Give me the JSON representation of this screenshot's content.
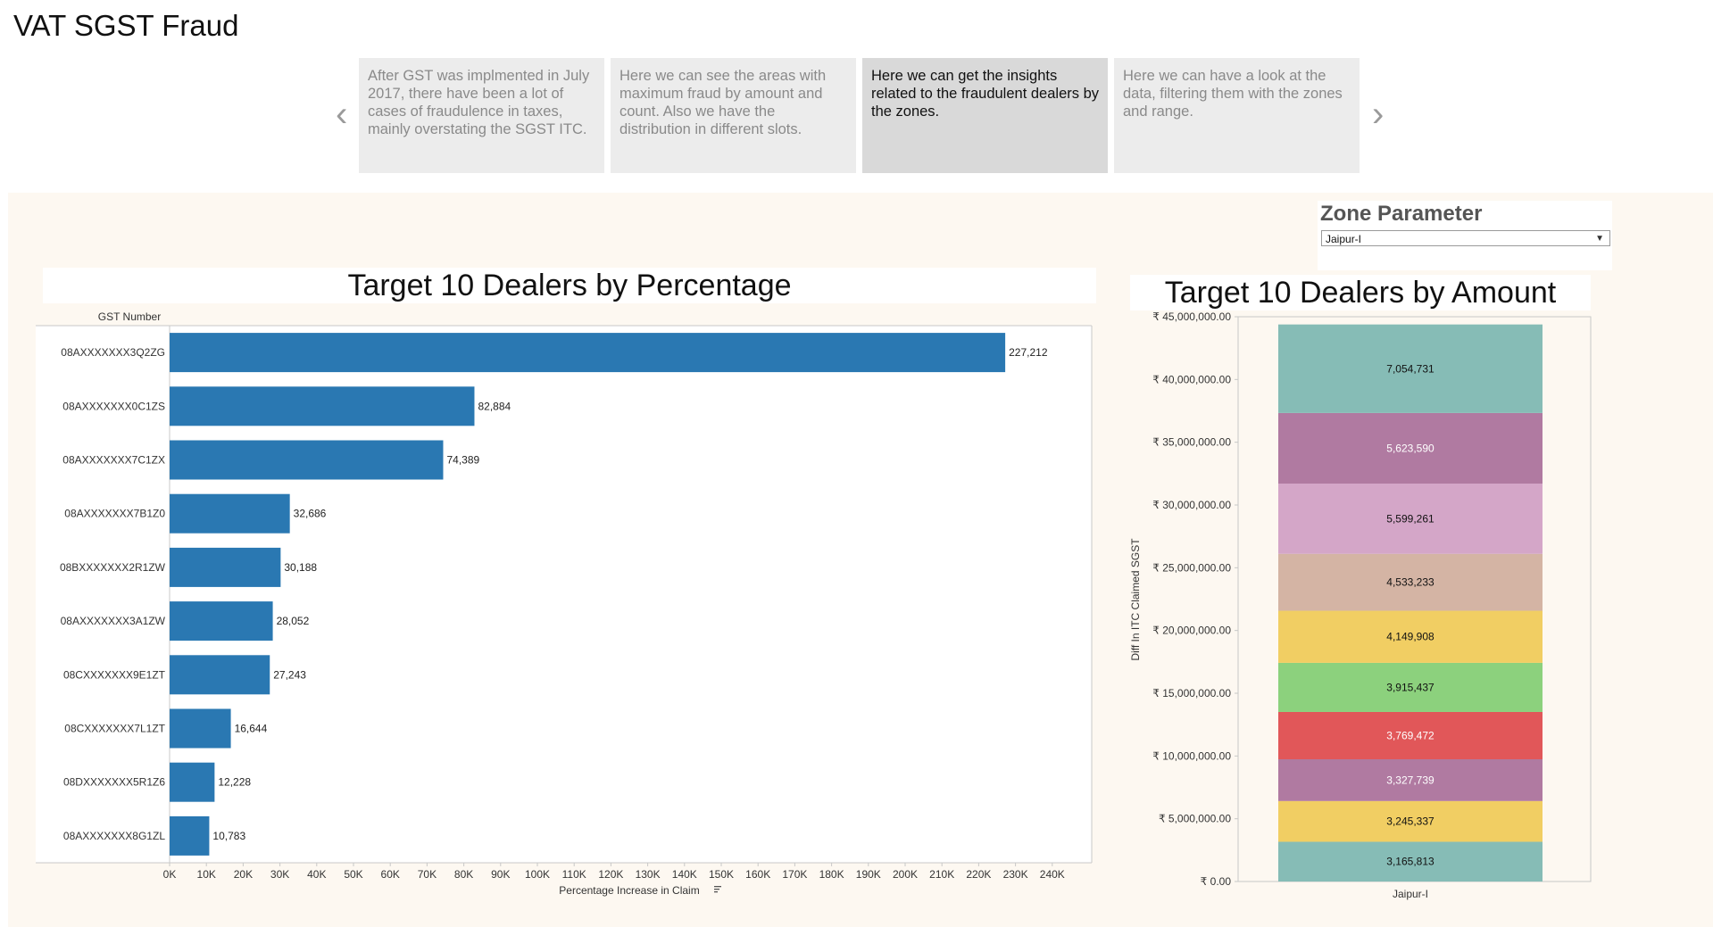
{
  "page_title": "VAT SGST Fraud",
  "story": {
    "prev_icon": "chevron-left-icon",
    "next_icon": "chevron-right-icon",
    "points": [
      {
        "text": "After GST was implmented in July 2017, there have been a lot of cases of fraudulence in taxes, mainly overstating the SGST ITC."
      },
      {
        "text": "Here we can see the areas with maximum fraud by amount and count. Also we have the distribution in different slots."
      },
      {
        "text": "Here we can get the insights related to the fraudulent dealers by the zones."
      },
      {
        "text": "Here we can have a look at the data, filtering them with the zones and range."
      }
    ],
    "active_index": 2
  },
  "zone_parameter": {
    "label": "Zone Parameter",
    "selected": "Jaipur-I"
  },
  "colors": {
    "bar_blue": "#2a78b2",
    "dashboard_bg": "#fdf8f1"
  },
  "chart_data": [
    {
      "type": "bar",
      "orientation": "horizontal",
      "title": "Target 10 Dealers by Percentage",
      "ylabel": "GST Number",
      "xlabel": "Percentage Increase in Claim",
      "categories": [
        "08AXXXXXXX3Q2ZG",
        "08AXXXXXXX0C1ZS",
        "08AXXXXXXX7C1ZX",
        "08AXXXXXXX7B1Z0",
        "08BXXXXXXX2R1ZW",
        "08AXXXXXXX3A1ZW",
        "08CXXXXXXX9E1ZT",
        "08CXXXXXXX7L1ZT",
        "08DXXXXXXX5R1Z6",
        "08AXXXXXXX8G1ZL"
      ],
      "values": [
        227212,
        82884,
        74389,
        32686,
        30188,
        28052,
        27243,
        16644,
        12228,
        10783
      ],
      "value_labels": [
        "227,212",
        "82,884",
        "74,389",
        "32,686",
        "30,188",
        "28,052",
        "27,243",
        "16,644",
        "12,228",
        "10,783"
      ],
      "xlim": [
        0,
        250000
      ],
      "xticks": [
        0,
        10000,
        20000,
        30000,
        40000,
        50000,
        60000,
        70000,
        80000,
        90000,
        100000,
        110000,
        120000,
        130000,
        140000,
        150000,
        160000,
        170000,
        180000,
        190000,
        200000,
        210000,
        220000,
        230000,
        240000
      ],
      "xtick_labels": [
        "0K",
        "10K",
        "20K",
        "30K",
        "40K",
        "50K",
        "60K",
        "70K",
        "80K",
        "90K",
        "100K",
        "110K",
        "120K",
        "130K",
        "140K",
        "150K",
        "160K",
        "170K",
        "180K",
        "190K",
        "200K",
        "210K",
        "220K",
        "230K",
        "240K"
      ],
      "grid": false
    },
    {
      "type": "bar",
      "stacked": true,
      "title": "Target 10 Dealers by Amount",
      "ylabel": "Diff In ITC Claimed SGST",
      "xlabel": "",
      "categories": [
        "Jaipur-I"
      ],
      "segments": [
        {
          "value": 3165813,
          "label": "3,165,813",
          "color": "#86bcb6",
          "text_color": "#111111"
        },
        {
          "value": 3245337,
          "label": "3,245,337",
          "color": "#f1ce63",
          "text_color": "#111111"
        },
        {
          "value": 3327739,
          "label": "3,327,739",
          "color": "#b07aa1",
          "text_color": "#ffffff"
        },
        {
          "value": 3769472,
          "label": "3,769,472",
          "color": "#e15759",
          "text_color": "#ffffff"
        },
        {
          "value": 3915437,
          "label": "3,915,437",
          "color": "#8cd17d",
          "text_color": "#111111"
        },
        {
          "value": 4149908,
          "label": "4,149,908",
          "color": "#f1ce63",
          "text_color": "#111111"
        },
        {
          "value": 4533233,
          "label": "4,533,233",
          "color": "#d4b4a4",
          "text_color": "#111111"
        },
        {
          "value": 5599261,
          "label": "5,599,261",
          "color": "#d4a6c8",
          "text_color": "#111111"
        },
        {
          "value": 5623590,
          "label": "5,623,590",
          "color": "#b07aa1",
          "text_color": "#ffffff"
        },
        {
          "value": 7054731,
          "label": "7,054,731",
          "color": "#86bcb6",
          "text_color": "#111111"
        }
      ],
      "ylim": [
        0,
        45000000
      ],
      "yticks": [
        0,
        5000000,
        10000000,
        15000000,
        20000000,
        25000000,
        30000000,
        35000000,
        40000000,
        45000000
      ],
      "ytick_labels": [
        "₹ 0.00",
        "₹ 5,000,000.00",
        "₹ 10,000,000.00",
        "₹ 15,000,000.00",
        "₹ 20,000,000.00",
        "₹ 25,000,000.00",
        "₹ 30,000,000.00",
        "₹ 35,000,000.00",
        "₹ 40,000,000.00",
        "₹ 45,000,000.00"
      ],
      "grid": false
    }
  ]
}
